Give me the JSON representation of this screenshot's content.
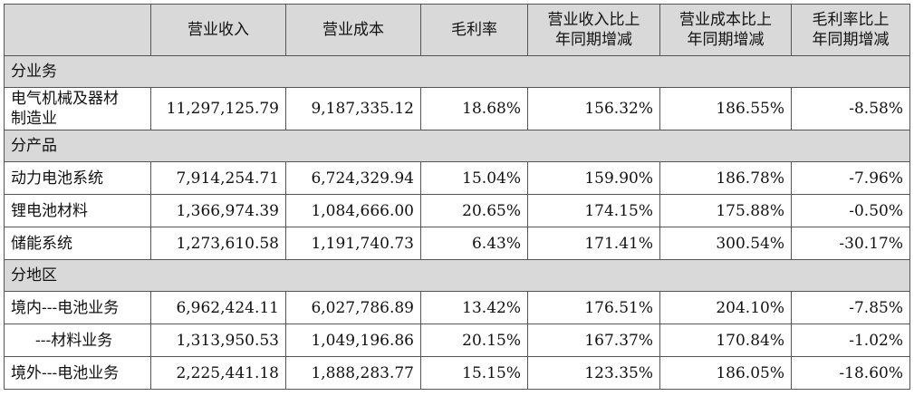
{
  "headers": [
    "",
    "营业收入",
    "营业成本",
    "毛利率",
    "营业收入比上年同期增减",
    "营业成本比上年同期增减",
    "毛利率比上年同期增减"
  ],
  "header_lines": {
    "h4": [
      "营业收入比上",
      "年同期增减"
    ],
    "h5": [
      "营业成本比上",
      "年同期增减"
    ],
    "h6": [
      "毛利率比上",
      "年同期增减"
    ]
  },
  "sections": {
    "business": "分业务",
    "product": "分产品",
    "region": "分地区"
  },
  "rows": {
    "r1": {
      "name_l1": "电气机械及器材",
      "name_l2": "制造业",
      "revenue": "11,297,125.79",
      "cost": "9,187,335.12",
      "margin": "18.68%",
      "rev_chg": "156.32%",
      "cost_chg": "186.55%",
      "margin_chg": "-8.58%"
    },
    "r2": {
      "name": "动力电池系统",
      "revenue": "7,914,254.71",
      "cost": "6,724,329.94",
      "margin": "15.04%",
      "rev_chg": "159.90%",
      "cost_chg": "186.78%",
      "margin_chg": "-7.96%"
    },
    "r3": {
      "name": "锂电池材料",
      "revenue": "1,366,974.39",
      "cost": "1,084,666.00",
      "margin": "20.65%",
      "rev_chg": "174.15%",
      "cost_chg": "175.88%",
      "margin_chg": "-0.50%"
    },
    "r4": {
      "name": "储能系统",
      "revenue": "1,273,610.58",
      "cost": "1,191,740.73",
      "margin": "6.43%",
      "rev_chg": "171.41%",
      "cost_chg": "300.54%",
      "margin_chg": "-30.17%"
    },
    "r5": {
      "name": "境内---电池业务",
      "revenue": "6,962,424.11",
      "cost": "6,027,786.89",
      "margin": "13.42%",
      "rev_chg": "176.51%",
      "cost_chg": "204.10%",
      "margin_chg": "-7.85%"
    },
    "r6": {
      "name": "---材料业务",
      "revenue": "1,313,950.53",
      "cost": "1,049,196.86",
      "margin": "20.15%",
      "rev_chg": "167.37%",
      "cost_chg": "170.84%",
      "margin_chg": "-1.02%"
    },
    "r7": {
      "name": "境外---电池业务",
      "revenue": "2,225,441.18",
      "cost": "1,888,283.77",
      "margin": "15.15%",
      "rev_chg": "123.35%",
      "cost_chg": "186.05%",
      "margin_chg": "-18.60%"
    }
  }
}
